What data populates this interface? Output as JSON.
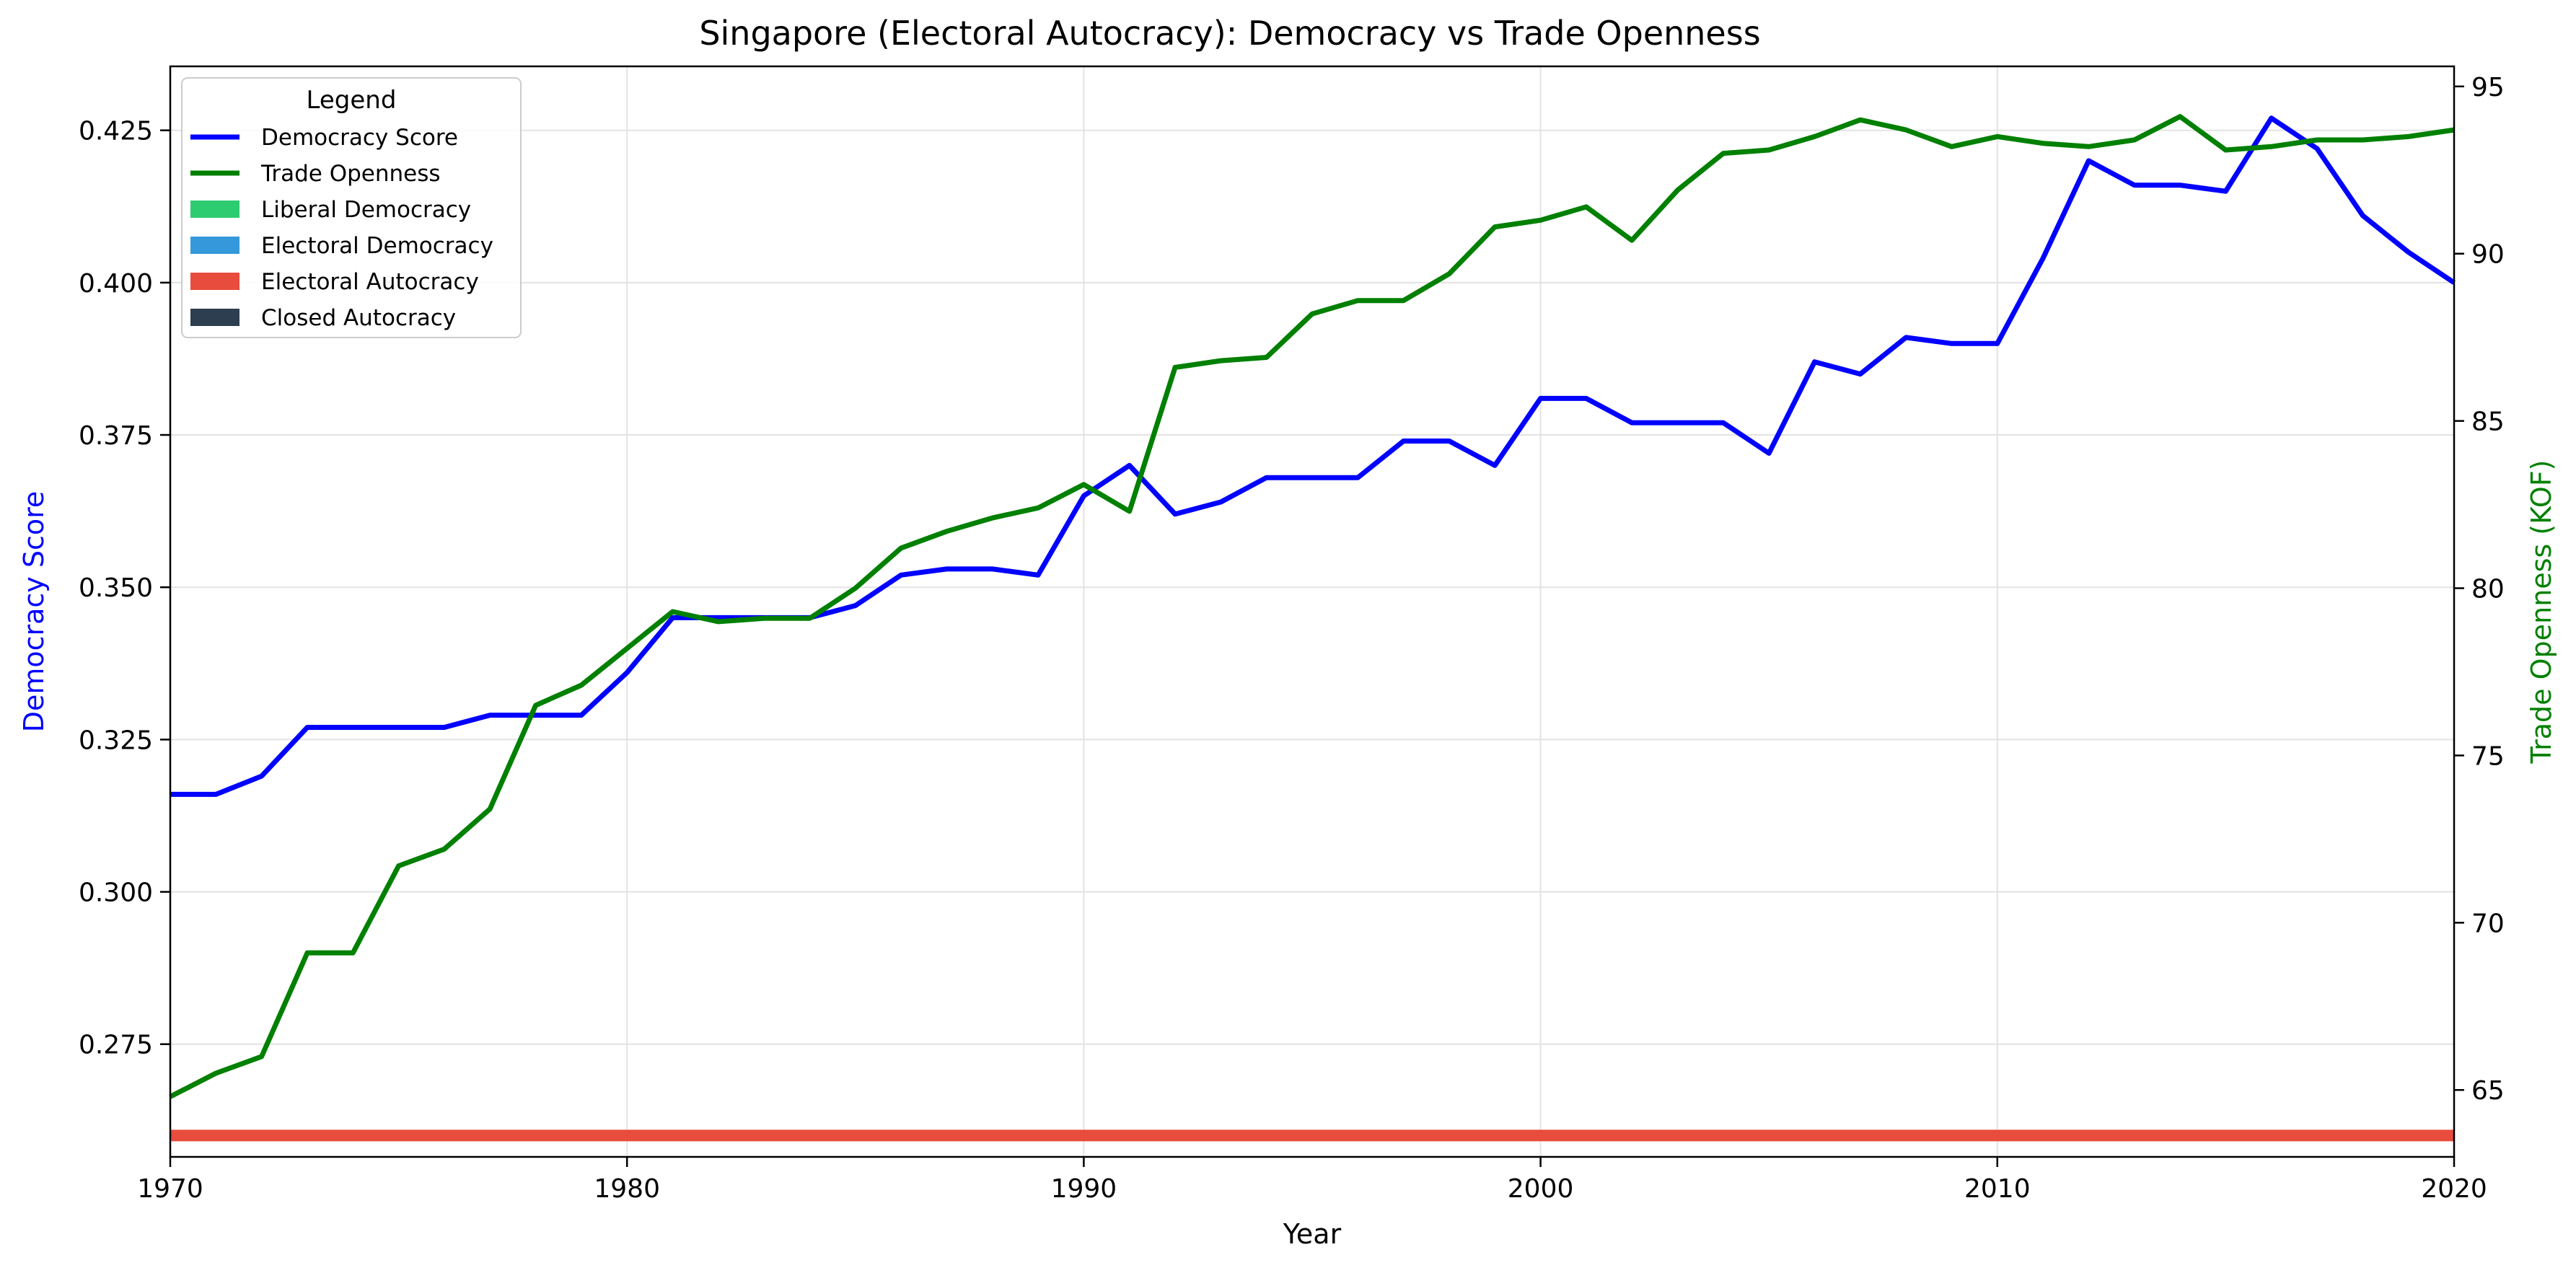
{
  "chart_data": {
    "type": "line",
    "title": "Singapore (Electoral Autocracy): Democracy vs Trade Openness",
    "xlabel": "Year",
    "ylabel_left": "Democracy Score",
    "ylabel_right": "Trade Openness (KOF)",
    "xlim": [
      1970,
      2020
    ],
    "ylim_left": [
      0.2565,
      0.4355
    ],
    "ylim_right": [
      63.0,
      95.6
    ],
    "x_ticks": [
      1970,
      1980,
      1990,
      2000,
      2010,
      2020
    ],
    "y_ticks_left": [
      0.275,
      0.3,
      0.325,
      0.35,
      0.375,
      0.4,
      0.425
    ],
    "y_ticks_right": [
      65,
      70,
      75,
      80,
      85,
      90,
      95
    ],
    "grid": true,
    "legend_title": "Legend",
    "legend_position": "top-left",
    "colors": {
      "democracy": "#0000ff",
      "trade": "#008000",
      "liberal": "#2ecc71",
      "electoral_dem": "#3498db",
      "electoral_auto": "#e74c3c",
      "closed": "#2c3e50"
    },
    "x": [
      1970,
      1971,
      1972,
      1973,
      1974,
      1975,
      1976,
      1977,
      1978,
      1979,
      1980,
      1981,
      1982,
      1983,
      1984,
      1985,
      1986,
      1987,
      1988,
      1989,
      1990,
      1991,
      1992,
      1993,
      1994,
      1995,
      1996,
      1997,
      1998,
      1999,
      2000,
      2001,
      2002,
      2003,
      2004,
      2005,
      2006,
      2007,
      2008,
      2009,
      2010,
      2011,
      2012,
      2013,
      2014,
      2015,
      2016,
      2017,
      2018,
      2019,
      2020
    ],
    "series": [
      {
        "name": "Democracy Score",
        "axis": "left",
        "values": [
          0.316,
          0.316,
          0.319,
          0.327,
          0.327,
          0.327,
          0.327,
          0.329,
          0.329,
          0.329,
          0.336,
          0.345,
          0.345,
          0.345,
          0.345,
          0.347,
          0.352,
          0.353,
          0.353,
          0.352,
          0.365,
          0.37,
          0.362,
          0.364,
          0.368,
          0.368,
          0.368,
          0.374,
          0.374,
          0.37,
          0.381,
          0.381,
          0.377,
          0.377,
          0.377,
          0.372,
          0.387,
          0.385,
          0.391,
          0.39,
          0.39,
          0.404,
          0.42,
          0.416,
          0.416,
          0.415,
          0.427,
          0.422,
          0.411,
          0.405,
          0.4
        ]
      },
      {
        "name": "Trade Openness",
        "axis": "right",
        "values": [
          64.8,
          65.5,
          66.0,
          69.1,
          69.1,
          71.7,
          72.2,
          73.4,
          76.5,
          77.1,
          78.2,
          79.3,
          79.0,
          79.1,
          79.1,
          80.0,
          81.2,
          81.7,
          82.1,
          82.4,
          83.1,
          82.3,
          86.6,
          86.8,
          86.9,
          88.2,
          88.6,
          88.6,
          89.4,
          90.8,
          91.0,
          91.4,
          90.4,
          91.9,
          93.0,
          93.1,
          93.5,
          94.0,
          93.7,
          93.2,
          93.5,
          93.3,
          93.2,
          93.4,
          94.1,
          93.1,
          93.2,
          93.4,
          93.4,
          93.5,
          93.7
        ]
      }
    ],
    "regime_band": {
      "name": "Electoral Autocracy",
      "from": 1970,
      "to": 2020,
      "level": 0.26
    },
    "legend": [
      {
        "label": "Democracy Score",
        "kind": "line",
        "color": "#0000ff"
      },
      {
        "label": "Trade Openness",
        "kind": "line",
        "color": "#008000"
      },
      {
        "label": "Liberal Democracy",
        "kind": "patch",
        "color": "#2ecc71"
      },
      {
        "label": "Electoral Democracy",
        "kind": "patch",
        "color": "#3498db"
      },
      {
        "label": "Electoral Autocracy",
        "kind": "patch",
        "color": "#e74c3c"
      },
      {
        "label": "Closed Autocracy",
        "kind": "patch",
        "color": "#2c3e50"
      }
    ]
  }
}
